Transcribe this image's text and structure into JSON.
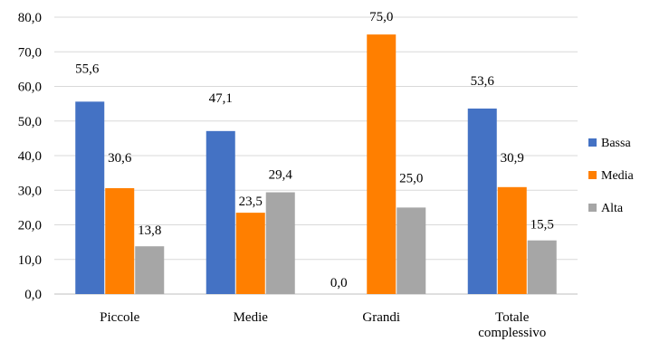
{
  "chart_data": {
    "type": "bar",
    "categories": [
      "Piccole",
      "Medie",
      "Grandi",
      "Totale complessivo"
    ],
    "category_lines": [
      [
        "Piccole"
      ],
      [
        "Medie"
      ],
      [
        "Grandi"
      ],
      [
        "Totale",
        "complessivo"
      ]
    ],
    "series": [
      {
        "name": "Bassa",
        "values": [
          55.6,
          47.1,
          0.0,
          53.6
        ],
        "labels": [
          "55,6",
          "47,1",
          "0,0",
          "53,6"
        ],
        "color": "#4472C4"
      },
      {
        "name": "Media",
        "values": [
          30.6,
          23.5,
          75.0,
          30.9
        ],
        "labels": [
          "30,6",
          "23,5",
          "75,0",
          "30,9"
        ],
        "color": "#FF7F00"
      },
      {
        "name": "Alta",
        "values": [
          13.8,
          29.4,
          25.0,
          15.5
        ],
        "labels": [
          "13,8",
          "29,4",
          "25,0",
          "15,5"
        ],
        "color": "#A6A6A6"
      }
    ],
    "ylim": [
      0,
      80
    ],
    "yticks": [
      0,
      10,
      20,
      30,
      40,
      50,
      60,
      70,
      80
    ],
    "ytick_labels": [
      "0,0",
      "10,0",
      "20,0",
      "30,0",
      "40,0",
      "50,0",
      "60,0",
      "70,0",
      "80,0"
    ],
    "grid": true,
    "legend_position": "right"
  }
}
